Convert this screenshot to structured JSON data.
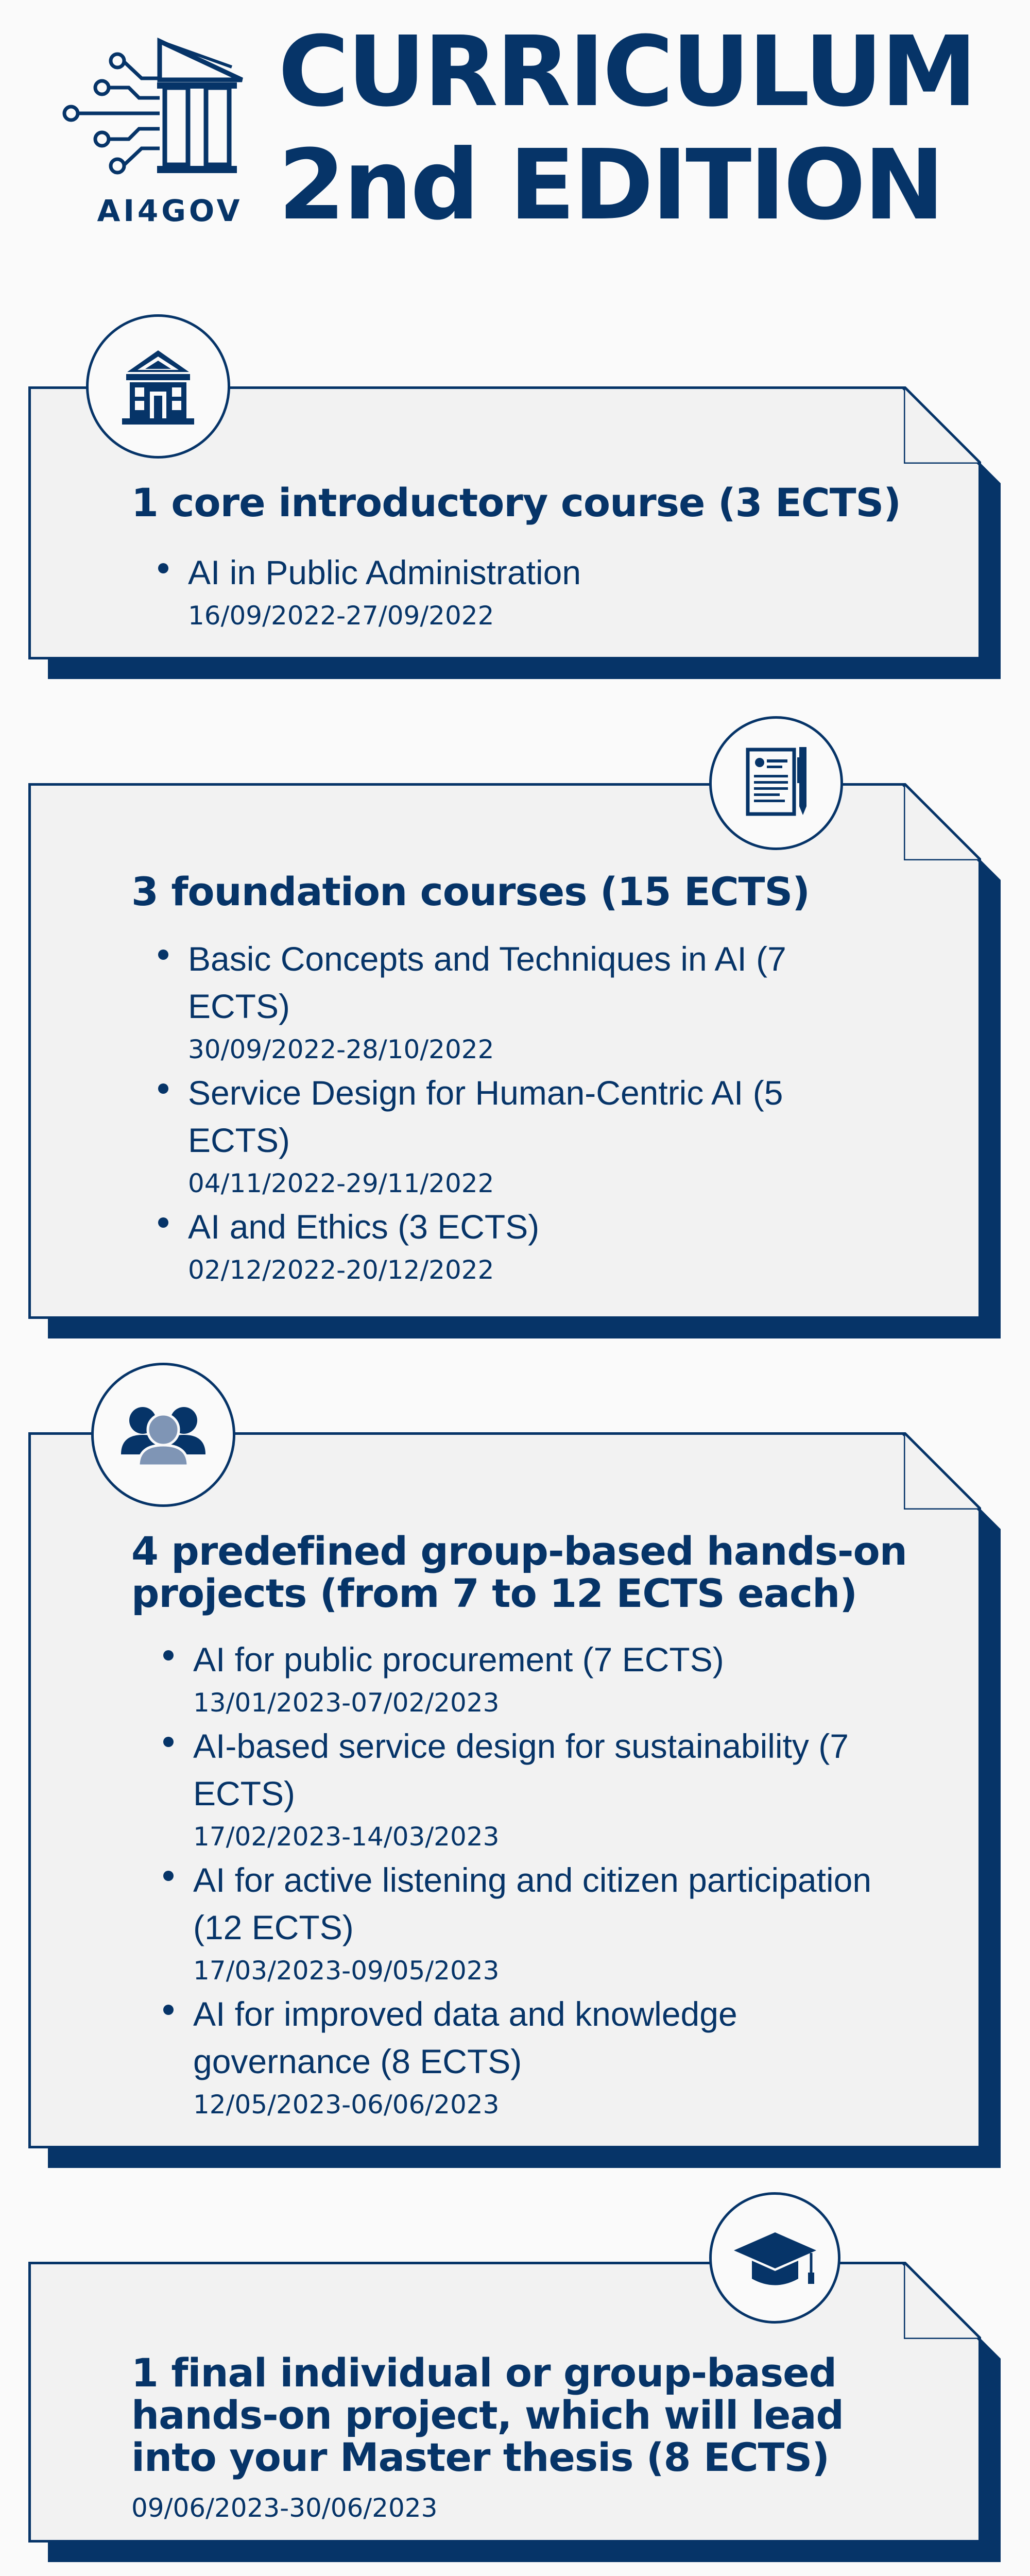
{
  "header": {
    "logo_text": "AI4GOV",
    "title_line1": "CURRICULUM",
    "title_line2": "2nd EDITION"
  },
  "colors": {
    "primary": "#063468",
    "card_bg": "#f2f2f2",
    "page_bg": "#fafafa"
  },
  "sections": [
    {
      "icon": "government-building-icon",
      "heading": "1 core introductory course (3 ECTS)",
      "items": [
        {
          "title": "AI in Public Administration",
          "date": "16/09/2022-27/09/2022"
        }
      ]
    },
    {
      "icon": "document-pen-icon",
      "heading": "3 foundation courses (15 ECTS)",
      "items": [
        {
          "title": "Basic Concepts and Techniques in AI (7 ECTS)",
          "date": "30/09/2022-28/10/2022"
        },
        {
          "title": "Service Design for Human-Centric AI (5 ECTS)",
          "date": "04/11/2022-29/11/2022"
        },
        {
          "title": "AI and Ethics (3 ECTS)",
          "date": "02/12/2022-20/12/2022"
        }
      ]
    },
    {
      "icon": "group-people-icon",
      "heading": "4 predefined group-based hands-on projects (from 7 to 12 ECTS each)",
      "items": [
        {
          "title": "AI for public procurement (7 ECTS)",
          "date": "13/01/2023-07/02/2023"
        },
        {
          "title": "AI-based service design for sustainability (7 ECTS)",
          "date": "17/02/2023-14/03/2023"
        },
        {
          "title": "AI for active listening and citizen participation (12 ECTS)",
          "date": "17/03/2023-09/05/2023"
        },
        {
          "title": "AI for improved data and knowledge governance (8 ECTS)",
          "date": "12/05/2023-06/06/2023"
        }
      ]
    },
    {
      "icon": "graduation-cap-icon",
      "heading": "1 final individual or group-based hands-on project, which will lead into your Master thesis (8 ECTS)",
      "date": "09/06/2023-30/06/2023"
    }
  ]
}
